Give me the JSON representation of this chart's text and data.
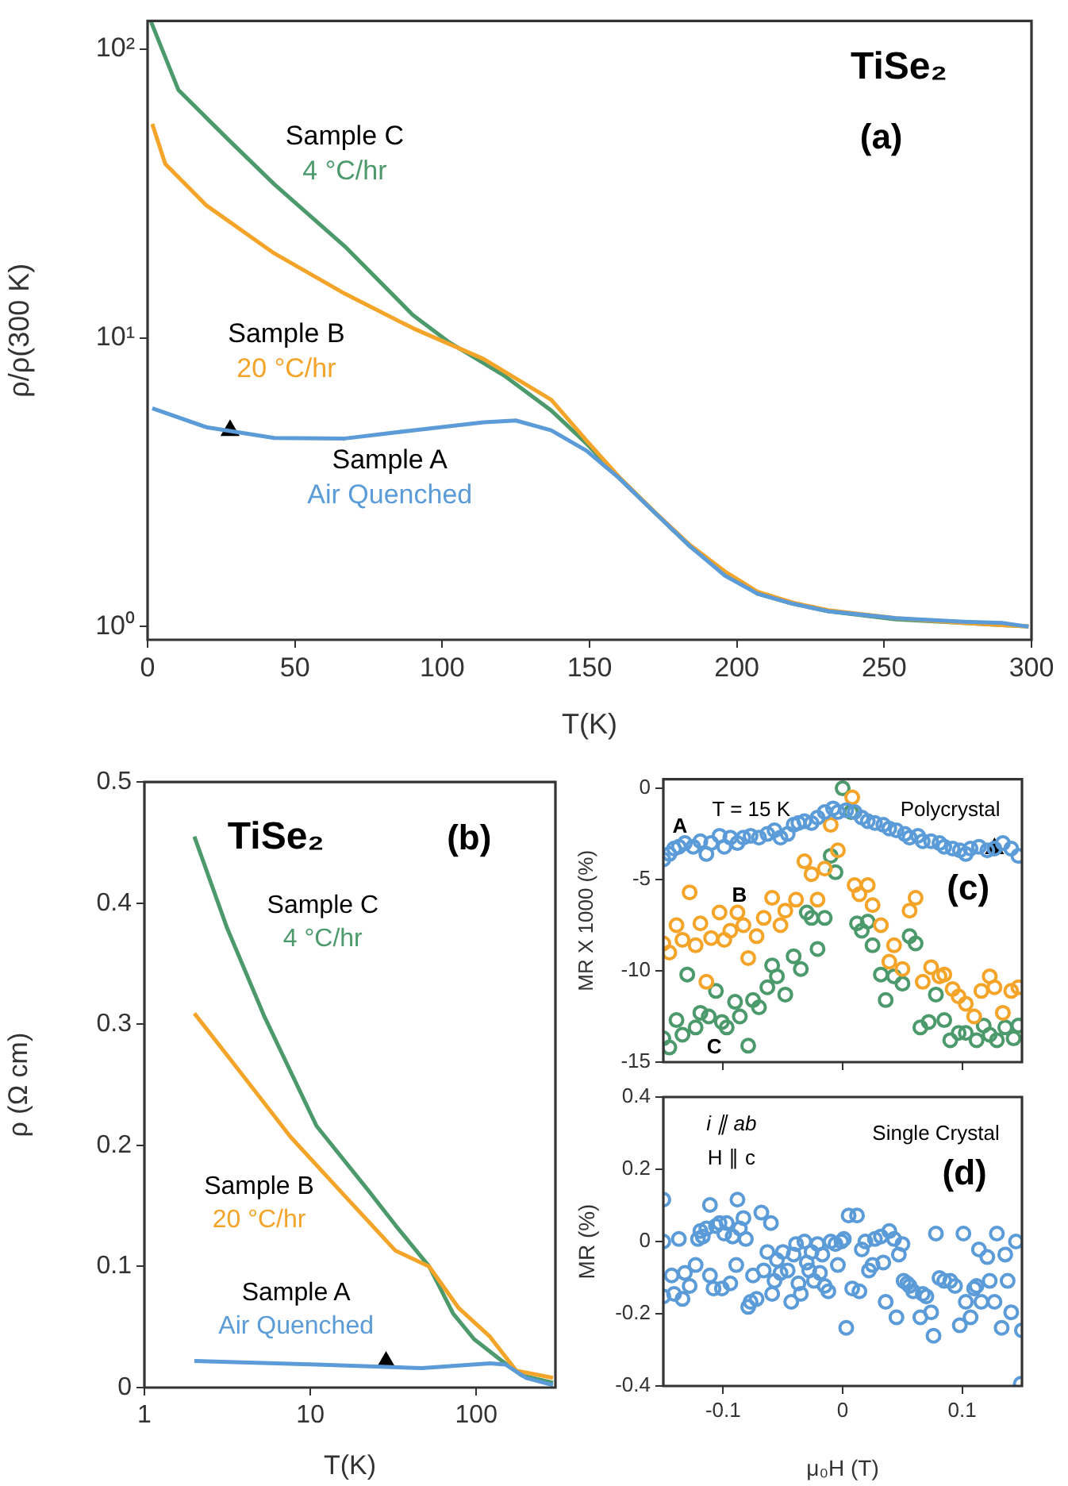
{
  "chart_data": [
    {
      "type": "line",
      "xlabel": "T(K)",
      "ylabel": "ρ/ρ(300 K)",
      "log": "y",
      "marker": "none",
      "xlim": [
        0,
        300
      ],
      "xticks": [
        0,
        50,
        100,
        150,
        200,
        250,
        300
      ],
      "ylim": [
        0.9,
        125
      ],
      "yticks": [
        {
          "value": 1,
          "label": "10⁰"
        },
        {
          "value": 10,
          "label": "10¹"
        },
        {
          "value": 100,
          "label": "10²"
        }
      ],
      "annotations": [
        "TiSe₂",
        "(a)",
        "Sample A",
        "Sample B",
        "Sample C"
      ],
      "series": [
        {
          "name": "Air Quenched",
          "color": "#5a9bd8",
          "x": [
            1.6,
            20,
            43,
            67,
            90,
            114,
            125,
            137,
            149,
            160,
            172,
            184,
            196,
            207,
            219,
            231,
            254,
            277,
            290,
            299
          ],
          "values": [
            5.7,
            4.9,
            4.5,
            4.48,
            4.78,
            5.1,
            5.17,
            4.78,
            4.06,
            3.27,
            2.49,
            1.9,
            1.5,
            1.3,
            1.2,
            1.13,
            1.07,
            1.04,
            1.03,
            1.0
          ]
        },
        {
          "name": "20 °C/hr",
          "color": "#f4a428",
          "x": [
            1.6,
            6,
            20,
            43,
            67,
            90,
            114,
            137,
            149,
            160,
            172,
            184,
            196,
            207,
            219,
            231,
            254,
            277,
            299
          ],
          "values": [
            55,
            40,
            28.7,
            19.6,
            14.2,
            10.8,
            8.45,
            6.1,
            4.4,
            3.3,
            2.5,
            1.92,
            1.55,
            1.32,
            1.21,
            1.14,
            1.07,
            1.03,
            1.0
          ]
        },
        {
          "name": "4 °C/hr",
          "color": "#4c9a6c",
          "x": [
            1.2,
            10.5,
            27,
            43,
            67,
            90,
            102,
            121,
            137,
            149,
            160,
            172,
            184,
            196,
            207,
            219,
            231,
            254,
            277,
            299
          ],
          "values": [
            124,
            72,
            49,
            34,
            20.7,
            12.0,
            9.7,
            7.4,
            5.6,
            4.3,
            3.27,
            2.49,
            1.9,
            1.53,
            1.3,
            1.2,
            1.13,
            1.06,
            1.03,
            1.0
          ]
        },
        {
          "type": "scatter",
          "marker": "triangle",
          "color": "#000000",
          "x": [
            28
          ],
          "values": [
            4.78
          ]
        }
      ]
    },
    {
      "type": "line",
      "xlabel": "T(K)",
      "ylabel": "ρ (Ω cm)",
      "log": "x",
      "marker": "none",
      "xlim": [
        1,
        300
      ],
      "xticks": [
        1,
        10,
        100
      ],
      "ylim": [
        0,
        0.5
      ],
      "yticks": [
        0,
        0.1,
        0.2,
        0.3,
        0.4,
        0.5
      ],
      "annotations": [
        "TiSe₂",
        "(b)",
        "Sample A",
        "Sample B",
        "Sample C"
      ],
      "series": [
        {
          "name": "Air Quenched",
          "color": "#5a9bd8",
          "x": [
            2,
            10.9,
            47,
            121,
            150,
            200,
            290
          ],
          "values": [
            0.022,
            0.019,
            0.016,
            0.02,
            0.019,
            0.008,
            0.002
          ]
        },
        {
          "name": "20 °C/hr",
          "color": "#f4a428",
          "x": [
            2,
            3.66,
            7.6,
            15.7,
            32.6,
            52,
            78,
            121,
            174,
            290
          ],
          "values": [
            0.309,
            0.263,
            0.207,
            0.16,
            0.113,
            0.1,
            0.066,
            0.042,
            0.014,
            0.008
          ]
        },
        {
          "name": "4 °C/hr",
          "color": "#4c9a6c",
          "x": [
            2,
            3.16,
            5.3,
            10.9,
            22.6,
            32.6,
            52,
            72.6,
            97,
            140,
            188,
            290
          ],
          "values": [
            0.455,
            0.379,
            0.306,
            0.216,
            0.162,
            0.134,
            0.1,
            0.061,
            0.04,
            0.023,
            0.01,
            0.004
          ]
        },
        {
          "type": "scatter",
          "marker": "triangle",
          "color": "#000000",
          "x": [
            28.6
          ],
          "values": [
            0.021
          ]
        }
      ]
    },
    {
      "type": "scatter",
      "ylabel": "MR X 1000 (%)",
      "marker": "circle",
      "tick_labels": "y",
      "xlim": [
        -0.15,
        0.15
      ],
      "xticks": [
        -0.1,
        0,
        0.1
      ],
      "ylim": [
        -15,
        0.5
      ],
      "yticks": [
        -15,
        -10,
        -5,
        0
      ],
      "annotations": [
        "T = 15 K",
        "Polycrystal",
        "(c)",
        "A",
        "B",
        "C"
      ],
      "series": [
        {
          "color": "#5a9bd8",
          "x": [
            -0.15,
            -0.145,
            -0.141,
            -0.137,
            -0.132,
            -0.125,
            -0.119,
            -0.114,
            -0.11,
            -0.103,
            -0.099,
            -0.094,
            -0.088,
            -0.083,
            -0.077,
            -0.07,
            -0.063,
            -0.057,
            -0.052,
            -0.046,
            -0.041,
            -0.037,
            -0.032,
            -0.026,
            -0.021,
            -0.015,
            -0.008,
            -0.004,
            0.003,
            0.01,
            0.016,
            0.021,
            0.027,
            0.034,
            0.039,
            0.045,
            0.052,
            0.056,
            0.063,
            0.067,
            0.074,
            0.081,
            0.085,
            0.092,
            0.098,
            0.103,
            0.107,
            0.114,
            0.121,
            0.127,
            0.134,
            0.141,
            0.147
          ],
          "values": [
            -3.9,
            -3.6,
            -3.3,
            -3.2,
            -3.0,
            -3.2,
            -2.9,
            -3.6,
            -3.0,
            -2.6,
            -3.2,
            -2.7,
            -3.0,
            -2.7,
            -2.6,
            -2.7,
            -2.5,
            -2.3,
            -2.7,
            -2.5,
            -2.0,
            -1.9,
            -1.8,
            -1.9,
            -1.6,
            -1.3,
            -1.1,
            -1.3,
            -1.2,
            -1.3,
            -1.6,
            -1.8,
            -1.9,
            -2.0,
            -2.2,
            -2.3,
            -2.5,
            -2.7,
            -2.6,
            -2.9,
            -2.9,
            -3.0,
            -3.2,
            -3.3,
            -3.4,
            -3.6,
            -3.3,
            -3.2,
            -3.4,
            -3.3,
            -3.0,
            -3.3,
            -3.7
          ]
        },
        {
          "color": "#f4a428",
          "x": [
            -0.15,
            -0.145,
            -0.139,
            -0.134,
            -0.128,
            -0.123,
            -0.119,
            -0.114,
            -0.11,
            -0.103,
            -0.099,
            -0.094,
            -0.088,
            -0.083,
            -0.079,
            -0.072,
            -0.066,
            -0.059,
            -0.052,
            -0.048,
            -0.039,
            -0.032,
            -0.026,
            -0.021,
            -0.015,
            -0.01,
            -0.004,
            0.008,
            0.01,
            0.014,
            0.021,
            0.025,
            0.032,
            0.039,
            0.043,
            0.05,
            0.056,
            0.061,
            0.067,
            0.074,
            0.081,
            0.085,
            0.092,
            0.097,
            0.103,
            0.11,
            0.116,
            0.123,
            0.127,
            0.134,
            0.141,
            0.147
          ],
          "values": [
            -8.5,
            -9.0,
            -7.5,
            -8.3,
            -5.7,
            -8.6,
            -7.4,
            -10.6,
            -8.2,
            -6.8,
            -8.3,
            -7.8,
            -6.8,
            -7.5,
            -9.3,
            -8.1,
            -7.1,
            -6.0,
            -7.5,
            -6.7,
            -6.1,
            -4.0,
            -4.7,
            -6.1,
            -4.4,
            -2.0,
            -3.4,
            -0.5,
            -5.3,
            -5.8,
            -5.3,
            -6.4,
            -7.5,
            -9.5,
            -8.6,
            -9.9,
            -6.7,
            -6.0,
            -10.6,
            -9.8,
            -10.3,
            -10.2,
            -11.0,
            -11.4,
            -11.8,
            -12.5,
            -11.1,
            -10.3,
            -10.9,
            -12.3,
            -11.1,
            -10.9
          ]
        },
        {
          "color": "#4c9a6c",
          "x": [
            -0.15,
            -0.145,
            -0.139,
            -0.134,
            -0.13,
            -0.123,
            -0.119,
            -0.112,
            -0.106,
            -0.101,
            -0.097,
            -0.09,
            -0.086,
            -0.079,
            -0.075,
            -0.07,
            -0.063,
            -0.059,
            -0.055,
            -0.048,
            -0.041,
            -0.035,
            -0.03,
            -0.026,
            -0.021,
            -0.015,
            -0.01,
            -0.006,
            0.0,
            0.007,
            0.012,
            0.016,
            0.021,
            0.025,
            0.032,
            0.036,
            0.043,
            0.05,
            0.056,
            0.061,
            0.065,
            0.072,
            0.078,
            0.085,
            0.09,
            0.097,
            0.103,
            0.112,
            0.118,
            0.123,
            0.129,
            0.136,
            0.143,
            0.147
          ],
          "values": [
            -13.7,
            -14.2,
            -12.7,
            -13.5,
            -10.2,
            -13.1,
            -12.3,
            -12.5,
            -11.1,
            -12.8,
            -13.1,
            -11.7,
            -12.5,
            -14.1,
            -11.6,
            -12.0,
            -10.9,
            -9.7,
            -10.3,
            -11.3,
            -9.2,
            -9.9,
            -6.8,
            -7.1,
            -8.8,
            -7.1,
            -3.7,
            -4.6,
            0.0,
            -1.3,
            -7.4,
            -7.8,
            -7.3,
            -8.6,
            -10.2,
            -11.6,
            -10.3,
            -10.7,
            -8.1,
            -8.5,
            -13.1,
            -12.8,
            -11.3,
            -12.7,
            -13.8,
            -13.4,
            -13.4,
            -13.8,
            -13.0,
            -13.5,
            -13.8,
            -13.1,
            -13.7,
            -13.0
          ]
        },
        {
          "marker": "triangle",
          "color": "#000000",
          "x": [
            0.127
          ],
          "values": [
            -3.3
          ]
        }
      ]
    },
    {
      "type": "scatter",
      "xlabel": "μ₀H (T)",
      "ylabel": "MR (%)",
      "marker": "circle",
      "xlim": [
        -0.15,
        0.15
      ],
      "xticks": [
        -0.1,
        0,
        0.1
      ],
      "ylim": [
        -0.4,
        0.4
      ],
      "yticks": [
        -0.4,
        -0.2,
        0,
        0.2,
        0.4
      ],
      "annotations": [
        "i ∥ ab",
        "H ∥ c",
        "Single Crystal",
        "(d)"
      ],
      "series": [
        {
          "color": "#5a9bd8",
          "x": [
            -0.15,
            -0.15,
            -0.15,
            -0.143,
            -0.141,
            -0.137,
            -0.134,
            -0.132,
            -0.128,
            -0.123,
            -0.121,
            -0.119,
            -0.117,
            -0.114,
            -0.111,
            -0.111,
            -0.108,
            -0.106,
            -0.103,
            -0.101,
            -0.099,
            -0.097,
            -0.094,
            -0.092,
            -0.089,
            -0.088,
            -0.086,
            -0.083,
            -0.081,
            -0.079,
            -0.077,
            -0.075,
            -0.072,
            -0.068,
            -0.066,
            -0.063,
            -0.06,
            -0.059,
            -0.057,
            -0.055,
            -0.052,
            -0.05,
            -0.046,
            -0.043,
            -0.041,
            -0.039,
            -0.037,
            -0.035,
            -0.032,
            -0.03,
            -0.028,
            -0.026,
            -0.024,
            -0.021,
            -0.019,
            -0.017,
            -0.015,
            -0.012,
            -0.01,
            -0.006,
            -0.004,
            -0.001,
            0.001,
            0.003,
            0.005,
            0.008,
            0.012,
            0.014,
            0.016,
            0.019,
            0.022,
            0.025,
            0.027,
            0.032,
            0.034,
            0.036,
            0.039,
            0.043,
            0.045,
            0.047,
            0.05,
            0.051,
            0.054,
            0.056,
            0.059,
            0.065,
            0.067,
            0.07,
            0.074,
            0.076,
            0.078,
            0.081,
            0.085,
            0.09,
            0.094,
            0.098,
            0.101,
            0.103,
            0.107,
            0.11,
            0.112,
            0.114,
            0.116,
            0.121,
            0.123,
            0.127,
            0.129,
            0.133,
            0.136,
            0.138,
            0.141,
            0.145,
            0.15,
            0.149
          ],
          "values": [
            0.116,
            0.0,
            -0.152,
            -0.094,
            -0.145,
            0.007,
            -0.159,
            -0.087,
            -0.123,
            -0.065,
            0.007,
            0.029,
            0.014,
            0.036,
            0.101,
            -0.094,
            -0.13,
            0.043,
            0.051,
            -0.13,
            0.022,
            0.051,
            -0.116,
            0.014,
            -0.065,
            0.116,
            0.036,
            0.065,
            0.007,
            -0.181,
            -0.167,
            -0.094,
            -0.159,
            0.08,
            -0.08,
            -0.029,
            0.051,
            -0.145,
            -0.109,
            -0.051,
            -0.087,
            -0.029,
            -0.08,
            -0.167,
            -0.036,
            -0.007,
            -0.116,
            -0.145,
            0.0,
            -0.058,
            -0.08,
            -0.029,
            -0.109,
            -0.007,
            -0.087,
            -0.036,
            -0.123,
            -0.138,
            0.0,
            -0.007,
            -0.065,
            0.0,
            0.007,
            -0.239,
            0.072,
            -0.13,
            0.072,
            -0.138,
            -0.022,
            0.0,
            -0.08,
            -0.065,
            0.007,
            0.014,
            -0.058,
            -0.167,
            0.029,
            0.007,
            -0.21,
            -0.036,
            -0.007,
            -0.109,
            -0.116,
            -0.123,
            -0.138,
            -0.21,
            -0.145,
            -0.152,
            -0.196,
            -0.261,
            0.022,
            -0.101,
            -0.109,
            -0.109,
            -0.123,
            -0.232,
            0.022,
            -0.167,
            -0.21,
            -0.13,
            -0.123,
            -0.022,
            -0.167,
            -0.043,
            -0.109,
            -0.167,
            0.022,
            -0.239,
            -0.036,
            -0.109,
            -0.196,
            0.0,
            -0.246,
            -0.394
          ]
        }
      ]
    }
  ]
}
